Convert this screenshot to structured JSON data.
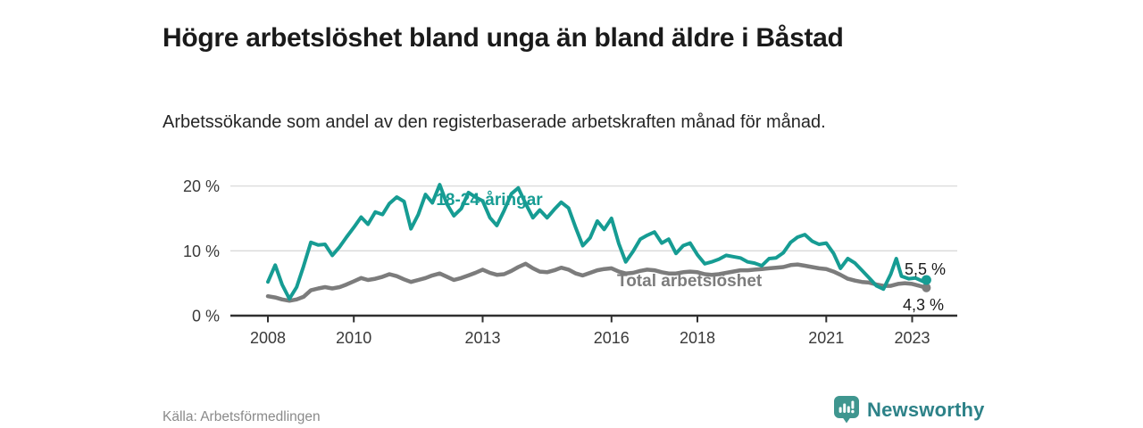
{
  "header": {
    "title": "Högre arbetslöshet bland unga än bland äldre i Båstad",
    "subtitle": "Arbetssökande som andel av den registerbaserade arbetskraften månad för månad."
  },
  "footer": {
    "source": "Källa: Arbetsförmedlingen",
    "brand": "Newsworthy",
    "brand_icon": "bar-chart-pin-icon"
  },
  "colors": {
    "youth": "#169c93",
    "total": "#7c7c7c",
    "grid": "#d9d9d9",
    "axis": "#2f2f2f",
    "annotation": "#1a1a1a",
    "title": "#1a1a1a",
    "body_text": "#262626",
    "source_text": "#8a8a8a",
    "brand_text": "#2d8288",
    "badge": "#3f968f"
  },
  "chart_data": {
    "type": "line",
    "title": "Högre arbetslöshet bland unga än bland äldre i Båstad",
    "subtitle": "Arbetssökande som andel av den registerbaserade arbetskraften månad för månad.",
    "xlabel": "",
    "ylabel": "",
    "unit": "%",
    "grid": "horizontal",
    "xlim": [
      2007.1,
      2024.5
    ],
    "ylim": [
      0,
      22
    ],
    "xticks": [
      2008,
      2010,
      2013,
      2016,
      2018,
      2021,
      2023
    ],
    "yticks": [
      {
        "value": 0,
        "label": "0 %"
      },
      {
        "value": 10,
        "label": "10 %"
      },
      {
        "value": 20,
        "label": "20 %"
      }
    ],
    "series": [
      {
        "name": "18-24-åringar",
        "color": "#169c93",
        "end_label": "5,5 %",
        "end_value": 5.5,
        "points": [
          [
            2008.0,
            5.2
          ],
          [
            2008.17,
            7.8
          ],
          [
            2008.33,
            4.8
          ],
          [
            2008.5,
            2.6
          ],
          [
            2008.67,
            4.4
          ],
          [
            2008.83,
            7.6
          ],
          [
            2009.0,
            11.3
          ],
          [
            2009.17,
            10.9
          ],
          [
            2009.33,
            11.0
          ],
          [
            2009.5,
            9.3
          ],
          [
            2009.67,
            10.6
          ],
          [
            2009.83,
            12.1
          ],
          [
            2010.0,
            13.6
          ],
          [
            2010.17,
            15.2
          ],
          [
            2010.33,
            14.1
          ],
          [
            2010.5,
            16.0
          ],
          [
            2010.67,
            15.6
          ],
          [
            2010.83,
            17.3
          ],
          [
            2011.0,
            18.3
          ],
          [
            2011.17,
            17.6
          ],
          [
            2011.33,
            13.4
          ],
          [
            2011.5,
            15.6
          ],
          [
            2011.67,
            18.7
          ],
          [
            2011.83,
            17.4
          ],
          [
            2012.0,
            20.2
          ],
          [
            2012.17,
            17.2
          ],
          [
            2012.33,
            15.4
          ],
          [
            2012.5,
            16.5
          ],
          [
            2012.67,
            19.0
          ],
          [
            2012.83,
            18.3
          ],
          [
            2013.0,
            17.7
          ],
          [
            2013.17,
            15.1
          ],
          [
            2013.33,
            13.9
          ],
          [
            2013.5,
            16.2
          ],
          [
            2013.67,
            18.8
          ],
          [
            2013.83,
            19.7
          ],
          [
            2014.0,
            17.3
          ],
          [
            2014.17,
            15.1
          ],
          [
            2014.33,
            16.3
          ],
          [
            2014.5,
            15.1
          ],
          [
            2014.67,
            16.4
          ],
          [
            2014.83,
            17.5
          ],
          [
            2015.0,
            16.6
          ],
          [
            2015.17,
            13.5
          ],
          [
            2015.33,
            10.8
          ],
          [
            2015.5,
            12.0
          ],
          [
            2015.67,
            14.6
          ],
          [
            2015.83,
            13.3
          ],
          [
            2016.0,
            15.0
          ],
          [
            2016.17,
            11.1
          ],
          [
            2016.33,
            8.3
          ],
          [
            2016.5,
            9.9
          ],
          [
            2016.67,
            11.8
          ],
          [
            2016.83,
            12.4
          ],
          [
            2017.0,
            12.9
          ],
          [
            2017.17,
            11.2
          ],
          [
            2017.33,
            11.8
          ],
          [
            2017.5,
            9.6
          ],
          [
            2017.67,
            10.8
          ],
          [
            2017.83,
            11.2
          ],
          [
            2018.0,
            9.4
          ],
          [
            2018.17,
            8.0
          ],
          [
            2018.33,
            8.3
          ],
          [
            2018.5,
            8.7
          ],
          [
            2018.67,
            9.3
          ],
          [
            2018.83,
            9.1
          ],
          [
            2019.0,
            8.9
          ],
          [
            2019.17,
            8.3
          ],
          [
            2019.33,
            8.1
          ],
          [
            2019.5,
            7.7
          ],
          [
            2019.67,
            8.8
          ],
          [
            2019.83,
            8.9
          ],
          [
            2020.0,
            9.7
          ],
          [
            2020.17,
            11.3
          ],
          [
            2020.33,
            12.1
          ],
          [
            2020.5,
            12.5
          ],
          [
            2020.67,
            11.5
          ],
          [
            2020.83,
            11.0
          ],
          [
            2021.0,
            11.2
          ],
          [
            2021.17,
            9.6
          ],
          [
            2021.33,
            7.3
          ],
          [
            2021.5,
            8.8
          ],
          [
            2021.67,
            8.1
          ],
          [
            2021.83,
            7.0
          ],
          [
            2022.0,
            5.8
          ],
          [
            2022.17,
            4.6
          ],
          [
            2022.33,
            4.1
          ],
          [
            2022.5,
            6.4
          ],
          [
            2022.63,
            8.8
          ],
          [
            2022.75,
            6.1
          ],
          [
            2022.92,
            5.7
          ],
          [
            2023.08,
            5.8
          ],
          [
            2023.25,
            5.3
          ],
          [
            2023.33,
            5.5
          ]
        ]
      },
      {
        "name": "Total arbetslöshet",
        "color": "#7c7c7c",
        "end_label": "4,3 %",
        "end_value": 4.3,
        "points": [
          [
            2008.0,
            3.0
          ],
          [
            2008.17,
            2.8
          ],
          [
            2008.33,
            2.5
          ],
          [
            2008.5,
            2.3
          ],
          [
            2008.67,
            2.5
          ],
          [
            2008.83,
            2.9
          ],
          [
            2009.0,
            3.9
          ],
          [
            2009.17,
            4.2
          ],
          [
            2009.33,
            4.4
          ],
          [
            2009.5,
            4.2
          ],
          [
            2009.67,
            4.4
          ],
          [
            2009.83,
            4.8
          ],
          [
            2010.0,
            5.3
          ],
          [
            2010.17,
            5.8
          ],
          [
            2010.33,
            5.5
          ],
          [
            2010.5,
            5.7
          ],
          [
            2010.67,
            6.0
          ],
          [
            2010.83,
            6.4
          ],
          [
            2011.0,
            6.1
          ],
          [
            2011.17,
            5.6
          ],
          [
            2011.33,
            5.2
          ],
          [
            2011.5,
            5.5
          ],
          [
            2011.67,
            5.8
          ],
          [
            2011.83,
            6.2
          ],
          [
            2012.0,
            6.5
          ],
          [
            2012.17,
            6.0
          ],
          [
            2012.33,
            5.5
          ],
          [
            2012.5,
            5.8
          ],
          [
            2012.67,
            6.2
          ],
          [
            2012.83,
            6.6
          ],
          [
            2013.0,
            7.1
          ],
          [
            2013.17,
            6.6
          ],
          [
            2013.33,
            6.3
          ],
          [
            2013.5,
            6.4
          ],
          [
            2013.67,
            6.9
          ],
          [
            2013.83,
            7.5
          ],
          [
            2014.0,
            8.0
          ],
          [
            2014.17,
            7.3
          ],
          [
            2014.33,
            6.8
          ],
          [
            2014.5,
            6.7
          ],
          [
            2014.67,
            7.0
          ],
          [
            2014.83,
            7.4
          ],
          [
            2015.0,
            7.1
          ],
          [
            2015.17,
            6.5
          ],
          [
            2015.33,
            6.2
          ],
          [
            2015.5,
            6.6
          ],
          [
            2015.67,
            7.0
          ],
          [
            2015.83,
            7.2
          ],
          [
            2016.0,
            7.3
          ],
          [
            2016.17,
            6.8
          ],
          [
            2016.33,
            6.5
          ],
          [
            2016.5,
            6.6
          ],
          [
            2016.67,
            6.9
          ],
          [
            2016.83,
            7.1
          ],
          [
            2017.0,
            7.0
          ],
          [
            2017.17,
            6.7
          ],
          [
            2017.33,
            6.5
          ],
          [
            2017.5,
            6.5
          ],
          [
            2017.67,
            6.7
          ],
          [
            2017.83,
            6.8
          ],
          [
            2018.0,
            6.7
          ],
          [
            2018.17,
            6.4
          ],
          [
            2018.33,
            6.3
          ],
          [
            2018.5,
            6.4
          ],
          [
            2018.67,
            6.6
          ],
          [
            2018.83,
            6.8
          ],
          [
            2019.0,
            7.0
          ],
          [
            2019.17,
            7.0
          ],
          [
            2019.33,
            7.1
          ],
          [
            2019.5,
            7.2
          ],
          [
            2019.67,
            7.3
          ],
          [
            2019.83,
            7.4
          ],
          [
            2020.0,
            7.5
          ],
          [
            2020.17,
            7.8
          ],
          [
            2020.33,
            7.9
          ],
          [
            2020.5,
            7.7
          ],
          [
            2020.67,
            7.5
          ],
          [
            2020.83,
            7.3
          ],
          [
            2021.0,
            7.2
          ],
          [
            2021.17,
            6.8
          ],
          [
            2021.33,
            6.3
          ],
          [
            2021.5,
            5.7
          ],
          [
            2021.67,
            5.4
          ],
          [
            2021.83,
            5.2
          ],
          [
            2022.0,
            5.1
          ],
          [
            2022.17,
            4.8
          ],
          [
            2022.33,
            4.6
          ],
          [
            2022.5,
            4.6
          ],
          [
            2022.67,
            4.9
          ],
          [
            2022.83,
            5.0
          ],
          [
            2023.0,
            4.9
          ],
          [
            2023.17,
            4.6
          ],
          [
            2023.33,
            4.3
          ]
        ]
      }
    ],
    "legend_position": "inline-annotations"
  }
}
